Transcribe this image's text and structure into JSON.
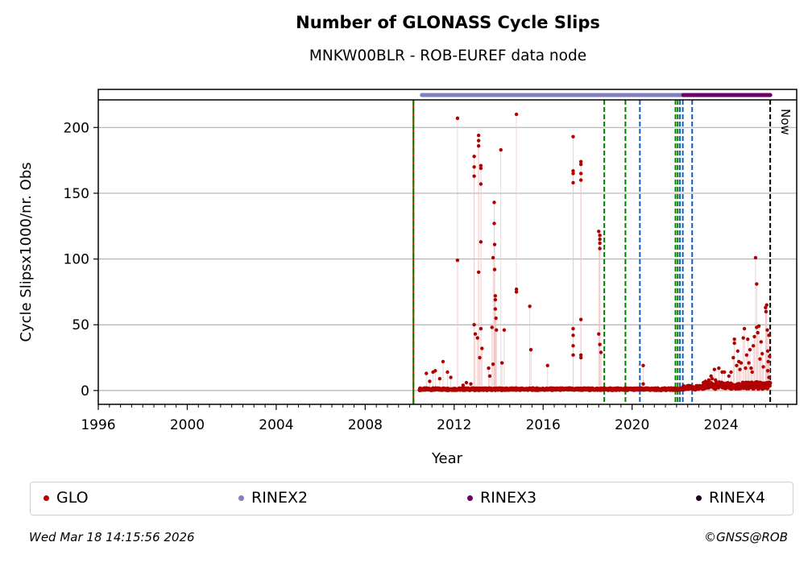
{
  "header": {
    "title": "Number of GLONASS Cycle Slips",
    "subtitle": "MNKW00BLR - ROB-EUREF data node"
  },
  "footer": {
    "timestamp": "Wed Mar 18 14:15:56 2026",
    "copyright": "©GNSS@ROB"
  },
  "legend": {
    "placement": "bottom",
    "items": [
      {
        "label": "GLO",
        "color": "#b00000"
      },
      {
        "label": "RINEX2",
        "color": "#8080c0"
      },
      {
        "label": "RINEX3",
        "color": "#6a0068"
      },
      {
        "label": "RINEX4",
        "color": "#200020"
      }
    ]
  },
  "chart_data": {
    "type": "scatter",
    "title": "Number of GLONASS Cycle Slips",
    "subtitle": "MNKW00BLR - ROB-EUREF data node",
    "xlabel": "Year",
    "ylabel": "Cycle Slipsx1000/nr. Obs",
    "xlim": [
      1996,
      2027.4
    ],
    "ylim": [
      -10.5,
      221
    ],
    "xticks": [
      1996,
      2000,
      2004,
      2008,
      2012,
      2016,
      2020,
      2024
    ],
    "xtick_labels": [
      "1996",
      "2000",
      "2004",
      "2008",
      "2012",
      "2016",
      "2020",
      "2024"
    ],
    "yticks": [
      0,
      50,
      100,
      150,
      200
    ],
    "ytick_labels": [
      "0",
      "50",
      "100",
      "150",
      "200"
    ],
    "grid": "horizontal",
    "now_label": "Now",
    "now_year": 2026.21,
    "rinex_periods": [
      {
        "name": "RINEX2",
        "start": 2010.55,
        "end": 2018.5,
        "color": "#8080c0"
      },
      {
        "name": "RINEX2",
        "start": 2018.55,
        "end": 2022.3,
        "color": "#8080c0"
      },
      {
        "name": "RINEX3",
        "start": 2022.3,
        "end": 2026.21,
        "color": "#6a0068"
      }
    ],
    "event_lines": [
      {
        "year": 2010.17,
        "color": "#008000",
        "style": "red-green-dashed"
      },
      {
        "year": 2018.75,
        "color": "#008000",
        "style": "dashed"
      },
      {
        "year": 2019.7,
        "color": "#008000",
        "style": "dashed"
      },
      {
        "year": 2020.35,
        "color": "#1060c0",
        "style": "dashed"
      },
      {
        "year": 2021.95,
        "color": "#008000",
        "style": "dashed"
      },
      {
        "year": 2022.05,
        "color": "#008000",
        "style": "dashed"
      },
      {
        "year": 2022.15,
        "color": "#1060c0",
        "style": "dashed"
      },
      {
        "year": 2022.28,
        "color": "#1060c0",
        "style": "dashed"
      },
      {
        "year": 2022.7,
        "color": "#1060c0",
        "style": "dashed"
      },
      {
        "year": 2026.21,
        "color": "#000000",
        "style": "dashed"
      }
    ],
    "series": [
      {
        "name": "GLO",
        "color": "#b00000",
        "baseline": {
          "start": 2010.45,
          "end": 2026.2,
          "segments": [
            {
              "start": 2010.45,
              "end": 2022.3,
              "value": 1.2
            },
            {
              "start": 2022.3,
              "end": 2023.2,
              "value": 2.5
            },
            {
              "start": 2023.2,
              "end": 2026.2,
              "value": 4.5
            }
          ]
        },
        "points": [
          [
            2010.75,
            13
          ],
          [
            2010.9,
            7
          ],
          [
            2011.05,
            14
          ],
          [
            2011.15,
            15
          ],
          [
            2011.35,
            9
          ],
          [
            2011.5,
            22
          ],
          [
            2011.7,
            14
          ],
          [
            2011.85,
            10
          ],
          [
            2012.15,
            207
          ],
          [
            2012.15,
            99
          ],
          [
            2012.4,
            4
          ],
          [
            2012.55,
            6
          ],
          [
            2012.75,
            5
          ],
          [
            2012.9,
            178
          ],
          [
            2012.9,
            170
          ],
          [
            2012.9,
            163
          ],
          [
            2012.9,
            50
          ],
          [
            2012.95,
            43
          ],
          [
            2013.05,
            40
          ],
          [
            2013.1,
            194
          ],
          [
            2013.1,
            190
          ],
          [
            2013.1,
            186
          ],
          [
            2013.1,
            90
          ],
          [
            2013.15,
            25
          ],
          [
            2013.2,
            171
          ],
          [
            2013.2,
            169
          ],
          [
            2013.2,
            157
          ],
          [
            2013.2,
            113
          ],
          [
            2013.2,
            47
          ],
          [
            2013.25,
            32
          ],
          [
            2013.55,
            17
          ],
          [
            2013.6,
            11
          ],
          [
            2013.7,
            48
          ],
          [
            2013.75,
            20
          ],
          [
            2013.75,
            101
          ],
          [
            2013.8,
            143
          ],
          [
            2013.8,
            127
          ],
          [
            2013.82,
            111
          ],
          [
            2013.82,
            92
          ],
          [
            2013.85,
            72
          ],
          [
            2013.85,
            69
          ],
          [
            2013.85,
            62
          ],
          [
            2013.88,
            55
          ],
          [
            2013.9,
            46
          ],
          [
            2014.1,
            183
          ],
          [
            2014.15,
            21
          ],
          [
            2014.25,
            46
          ],
          [
            2014.8,
            210
          ],
          [
            2014.8,
            77
          ],
          [
            2014.8,
            75
          ],
          [
            2015.4,
            64
          ],
          [
            2015.45,
            31
          ],
          [
            2016.2,
            19
          ],
          [
            2017.35,
            193
          ],
          [
            2017.35,
            167
          ],
          [
            2017.35,
            165
          ],
          [
            2017.35,
            158
          ],
          [
            2017.35,
            47
          ],
          [
            2017.35,
            42
          ],
          [
            2017.35,
            34
          ],
          [
            2017.35,
            27
          ],
          [
            2017.7,
            174
          ],
          [
            2017.7,
            172
          ],
          [
            2017.7,
            165
          ],
          [
            2017.7,
            160
          ],
          [
            2017.7,
            54
          ],
          [
            2017.7,
            27
          ],
          [
            2017.7,
            25
          ],
          [
            2018.5,
            121
          ],
          [
            2018.55,
            118
          ],
          [
            2018.55,
            115
          ],
          [
            2018.55,
            112
          ],
          [
            2018.55,
            108
          ],
          [
            2018.5,
            43
          ],
          [
            2018.55,
            35
          ],
          [
            2018.6,
            29
          ],
          [
            2020.5,
            19
          ],
          [
            2020.5,
            5
          ],
          [
            2023.3,
            7
          ],
          [
            2023.45,
            8
          ],
          [
            2023.55,
            11
          ],
          [
            2023.6,
            9
          ],
          [
            2023.7,
            16
          ],
          [
            2023.75,
            8
          ],
          [
            2023.9,
            17
          ],
          [
            2024.05,
            14
          ],
          [
            2024.15,
            14
          ],
          [
            2024.35,
            11
          ],
          [
            2024.45,
            14
          ],
          [
            2024.55,
            25
          ],
          [
            2024.6,
            39
          ],
          [
            2024.6,
            36
          ],
          [
            2024.7,
            19
          ],
          [
            2024.75,
            30
          ],
          [
            2024.8,
            22
          ],
          [
            2024.85,
            16
          ],
          [
            2024.9,
            21
          ],
          [
            2025.0,
            40
          ],
          [
            2025.05,
            47
          ],
          [
            2025.1,
            17
          ],
          [
            2025.15,
            27
          ],
          [
            2025.2,
            39
          ],
          [
            2025.25,
            21
          ],
          [
            2025.3,
            31
          ],
          [
            2025.35,
            17
          ],
          [
            2025.4,
            14
          ],
          [
            2025.45,
            34
          ],
          [
            2025.5,
            41
          ],
          [
            2025.55,
            101
          ],
          [
            2025.6,
            81
          ],
          [
            2025.6,
            48
          ],
          [
            2025.65,
            44
          ],
          [
            2025.7,
            49
          ],
          [
            2025.75,
            24
          ],
          [
            2025.8,
            37
          ],
          [
            2025.85,
            28
          ],
          [
            2025.9,
            18
          ],
          [
            2026.0,
            63
          ],
          [
            2026.02,
            60
          ],
          [
            2026.05,
            65
          ],
          [
            2026.08,
            46
          ],
          [
            2026.1,
            30
          ],
          [
            2026.12,
            22
          ],
          [
            2026.15,
            42
          ],
          [
            2026.1,
            15
          ],
          [
            2026.18,
            26
          ],
          [
            2026.15,
            10
          ]
        ]
      }
    ]
  }
}
